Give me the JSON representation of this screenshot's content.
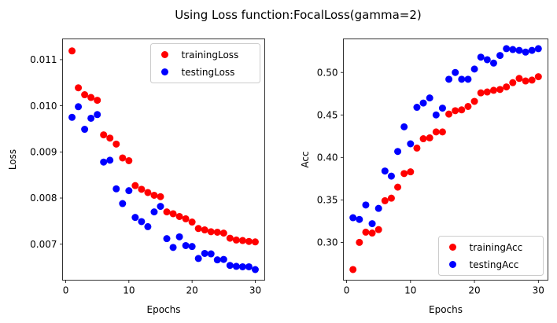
{
  "figure": {
    "title": "Using Loss function:FocalLoss(gamma=2)"
  },
  "colors": {
    "training": "#ff0000",
    "testing": "#0000ff"
  },
  "chart_data": [
    {
      "type": "scatter",
      "xlabel": "Epochs",
      "ylabel": "Loss",
      "xlim": [
        -0.5,
        31.5
      ],
      "ylim": [
        0.00622,
        0.01145
      ],
      "xticks": [
        0,
        10,
        20,
        30
      ],
      "xtick_labels": [
        "0",
        "10",
        "20",
        "30"
      ],
      "yticks": [
        0.007,
        0.008,
        0.009,
        0.01,
        0.011
      ],
      "ytick_labels": [
        "0.007",
        "0.008",
        "0.009",
        "0.010",
        "0.011"
      ],
      "grid": false,
      "legend": "top-right",
      "x": [
        1,
        2,
        3,
        4,
        5,
        6,
        7,
        8,
        9,
        10,
        11,
        12,
        13,
        14,
        15,
        16,
        17,
        18,
        19,
        20,
        21,
        22,
        23,
        24,
        25,
        26,
        27,
        28,
        29,
        30
      ],
      "series": [
        {
          "name": "trainingLoss",
          "color": "#ff0000",
          "values": [
            0.01119,
            0.01039,
            0.01024,
            0.01018,
            0.01012,
            0.00937,
            0.0093,
            0.00917,
            0.00887,
            0.00881,
            0.00827,
            0.00819,
            0.00812,
            0.00806,
            0.00803,
            0.0077,
            0.00766,
            0.0076,
            0.00755,
            0.00748,
            0.00734,
            0.00731,
            0.00727,
            0.00726,
            0.00724,
            0.00713,
            0.00709,
            0.00708,
            0.00706,
            0.00705
          ]
        },
        {
          "name": "testingLoss",
          "color": "#0000ff",
          "values": [
            0.00975,
            0.00998,
            0.00949,
            0.00973,
            0.00981,
            0.00878,
            0.00882,
            0.0082,
            0.00788,
            0.00816,
            0.00758,
            0.00749,
            0.00738,
            0.0077,
            0.00782,
            0.00712,
            0.00693,
            0.00716,
            0.00697,
            0.00695,
            0.00669,
            0.0068,
            0.00679,
            0.00666,
            0.00667,
            0.00654,
            0.00652,
            0.00651,
            0.00651,
            0.00645
          ]
        }
      ]
    },
    {
      "type": "scatter",
      "xlabel": "Epochs",
      "ylabel": "Acc",
      "xlim": [
        -0.5,
        31.5
      ],
      "ylim": [
        0.2555,
        0.5395
      ],
      "xticks": [
        0,
        10,
        20,
        30
      ],
      "xtick_labels": [
        "0",
        "10",
        "20",
        "30"
      ],
      "yticks": [
        0.3,
        0.35,
        0.4,
        0.45,
        0.5
      ],
      "ytick_labels": [
        "0.30",
        "0.35",
        "0.40",
        "0.45",
        "0.50"
      ],
      "grid": false,
      "legend": "bottom-right",
      "x": [
        1,
        2,
        3,
        4,
        5,
        6,
        7,
        8,
        9,
        10,
        11,
        12,
        13,
        14,
        15,
        16,
        17,
        18,
        19,
        20,
        21,
        22,
        23,
        24,
        25,
        26,
        27,
        28,
        29,
        30
      ],
      "series": [
        {
          "name": "trainingAcc",
          "color": "#ff0000",
          "values": [
            0.268,
            0.3,
            0.312,
            0.311,
            0.315,
            0.349,
            0.352,
            0.365,
            0.381,
            0.383,
            0.411,
            0.422,
            0.423,
            0.43,
            0.43,
            0.451,
            0.455,
            0.456,
            0.46,
            0.466,
            0.476,
            0.477,
            0.479,
            0.48,
            0.483,
            0.488,
            0.493,
            0.49,
            0.491,
            0.495
          ]
        },
        {
          "name": "testingAcc",
          "color": "#0000ff",
          "values": [
            0.329,
            0.327,
            0.344,
            0.322,
            0.34,
            0.384,
            0.378,
            0.407,
            0.436,
            0.416,
            0.459,
            0.464,
            0.47,
            0.45,
            0.458,
            0.492,
            0.5,
            0.492,
            0.492,
            0.504,
            0.518,
            0.515,
            0.511,
            0.52,
            0.528,
            0.527,
            0.526,
            0.524,
            0.526,
            0.528
          ]
        }
      ]
    }
  ]
}
